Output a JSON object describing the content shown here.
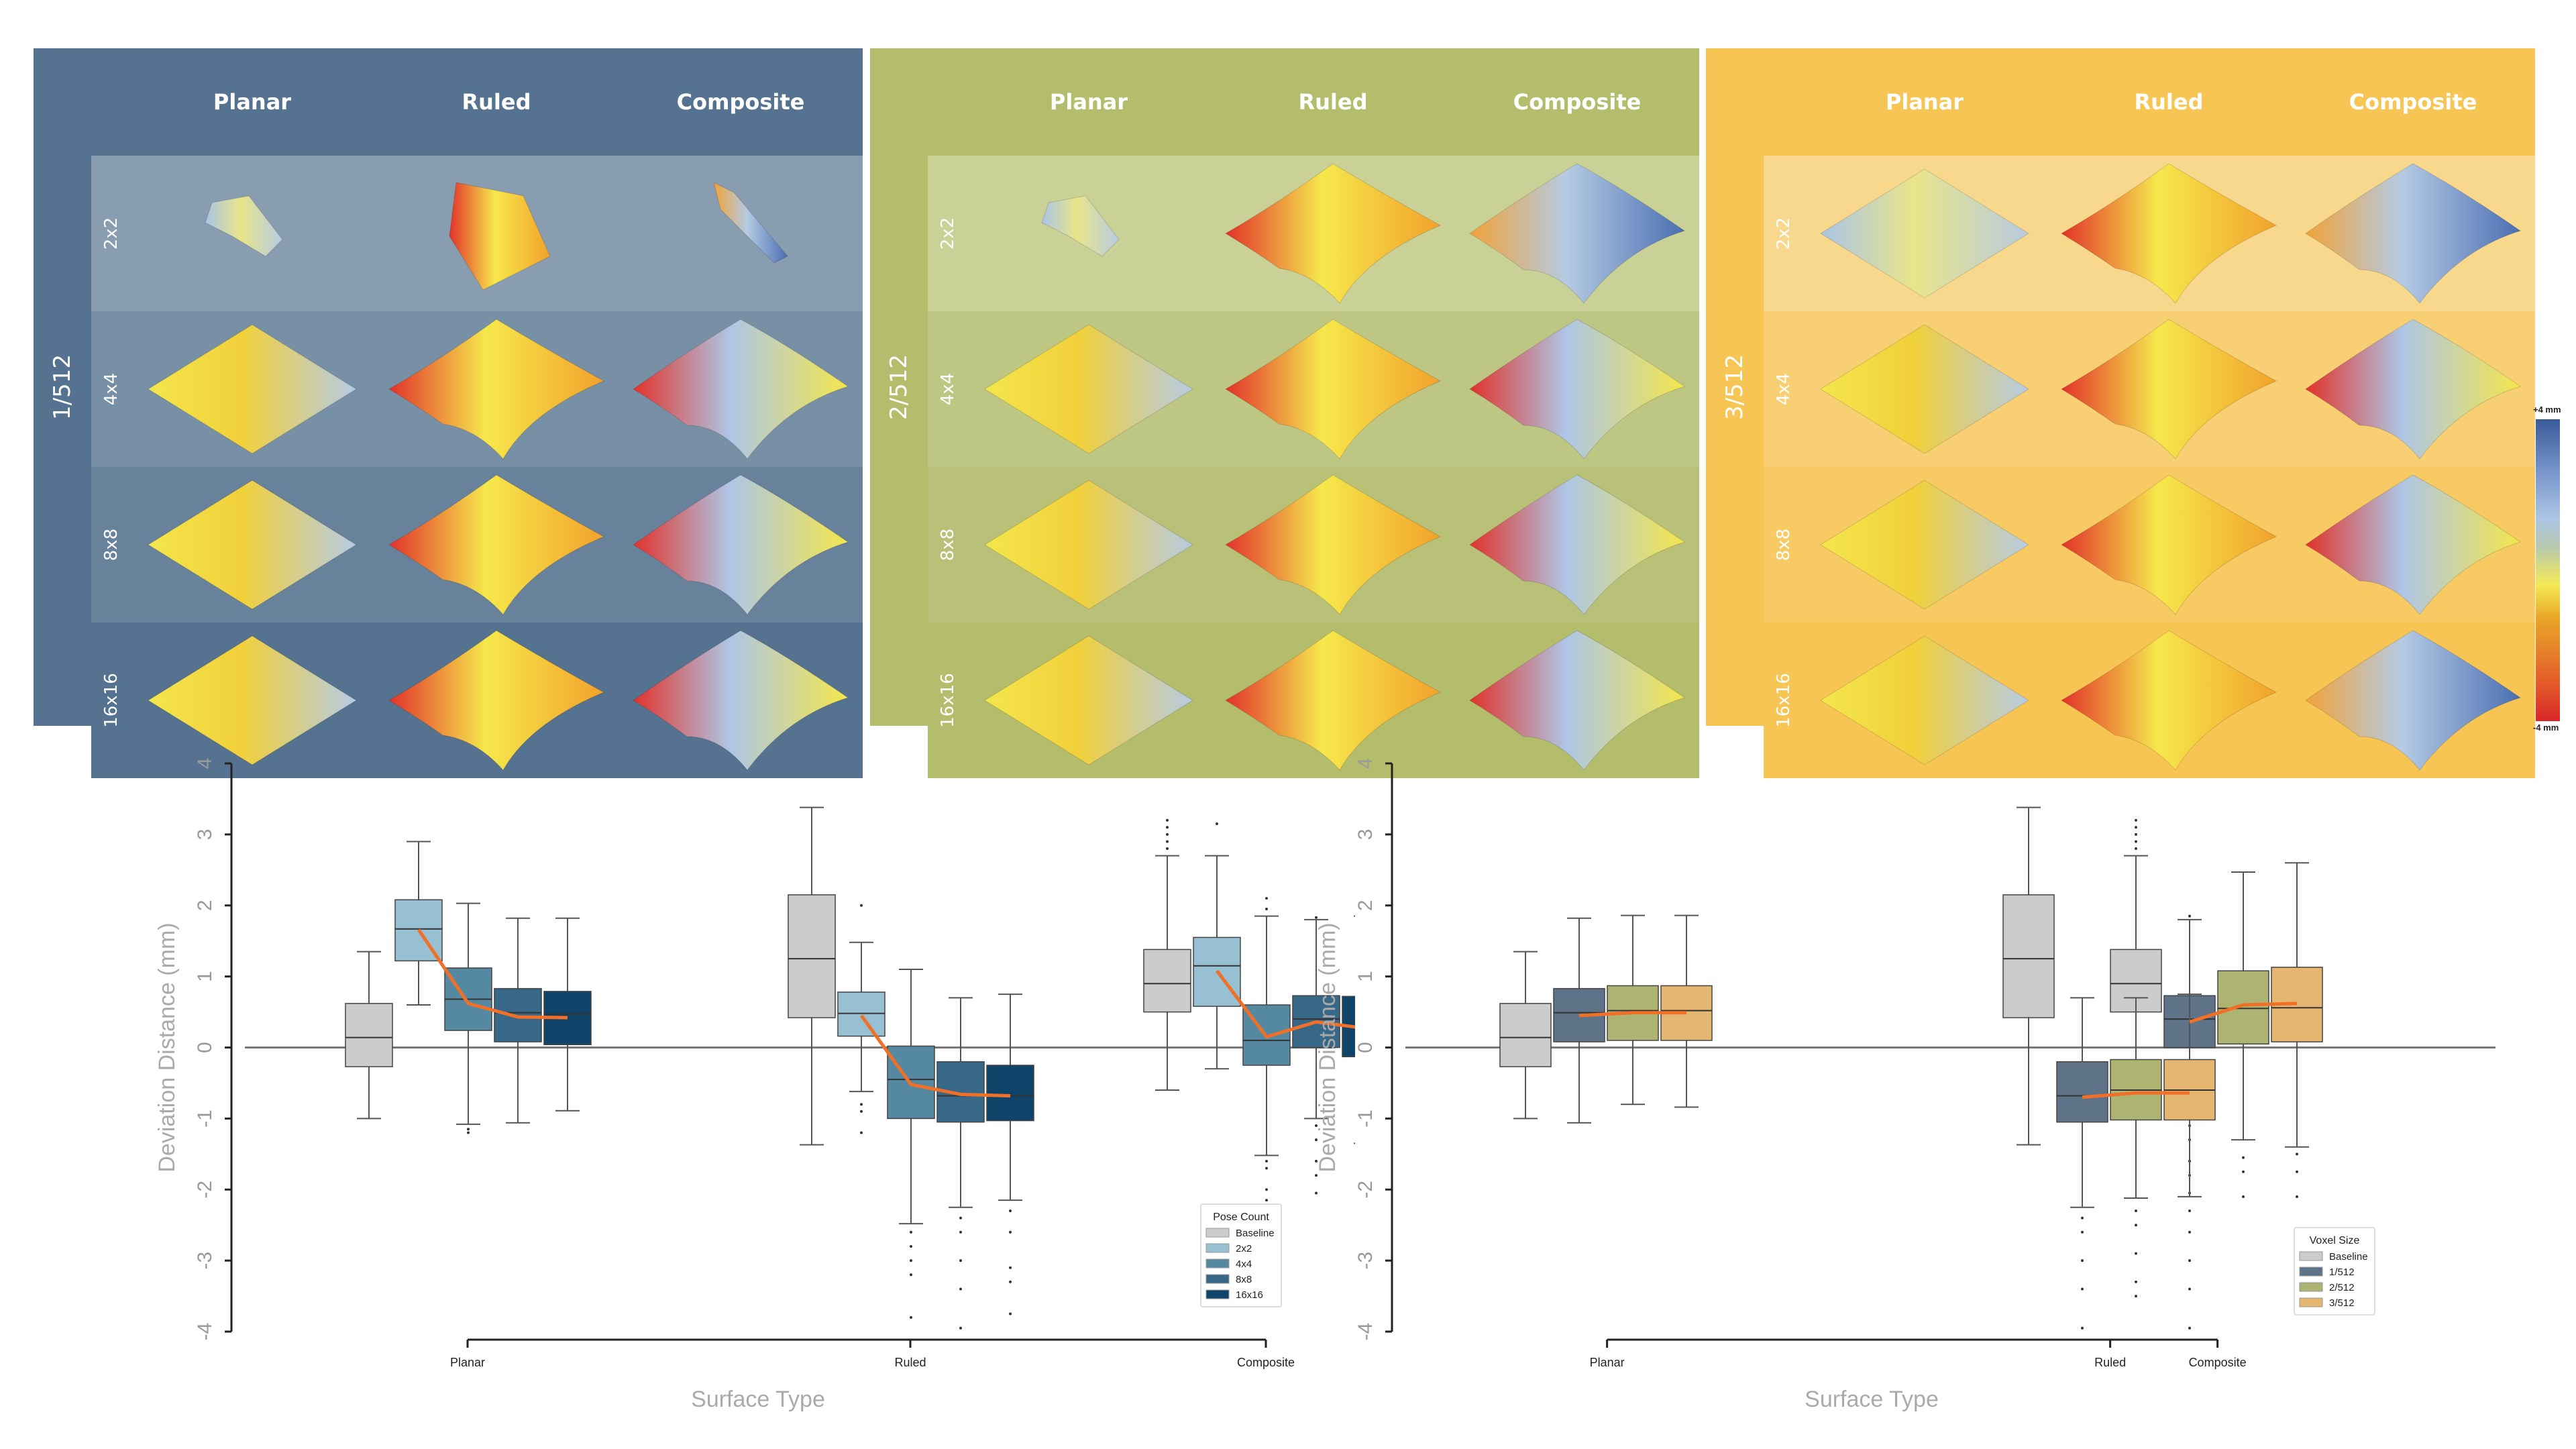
{
  "figure": {
    "colorbar": {
      "max_label": "+4 mm",
      "min_label": "-4 mm",
      "range_mm": [
        -4,
        4
      ],
      "colors": [
        "#3a5a98",
        "#adc6e6",
        "#f5ea55",
        "#e6842a",
        "#d8262a"
      ]
    },
    "panels": [
      {
        "voxel_size": "1/512",
        "color": "#557290",
        "row_tints": [
          "#889db0",
          "#7890a6",
          "#68829c",
          "#557290"
        ],
        "columns": [
          "Planar",
          "Ruled",
          "Composite"
        ],
        "rows": [
          "2x2",
          "4x4",
          "8x8",
          "16x16"
        ]
      },
      {
        "voxel_size": "2/512",
        "color": "#b4bd6c",
        "row_tints": [
          "#c9d196",
          "#bec684",
          "#b9c178",
          "#b4bd6c"
        ],
        "columns": [
          "Planar",
          "Ruled",
          "Composite"
        ],
        "rows": [
          "2x2",
          "4x4",
          "8x8",
          "16x16"
        ]
      },
      {
        "voxel_size": "3/512",
        "color": "#f7c553",
        "row_tints": [
          "#f8d88c",
          "#f8cf72",
          "#f7ca63",
          "#f7c553"
        ],
        "columns": [
          "Planar",
          "Ruled",
          "Composite"
        ],
        "rows": [
          "2x2",
          "4x4",
          "8x8",
          "16x16"
        ]
      }
    ]
  },
  "chart_data": [
    {
      "type": "box",
      "title": "",
      "xlabel": "Surface Type",
      "ylabel": "Deviation Distance (mm)",
      "ylim": [
        -4,
        4
      ],
      "yticks": [
        -4,
        -3,
        -2,
        -1,
        0,
        1,
        2,
        3,
        4
      ],
      "categories": [
        "Planar",
        "Ruled",
        "Composite"
      ],
      "legend": {
        "title": "Pose Count",
        "position": "bottom-right"
      },
      "trend_line_color": "#f07028",
      "reference_line": 0,
      "series": [
        {
          "name": "Baseline",
          "color": "#cccccc",
          "boxes": [
            {
              "q1": -0.27,
              "median": 0.14,
              "q3": 0.62,
              "wlo": -1.0,
              "whi": 1.35,
              "mean": 0.16,
              "outliers": []
            },
            {
              "q1": 0.42,
              "median": 1.25,
              "q3": 2.15,
              "wlo": -1.37,
              "whi": 3.38,
              "mean": 1.28,
              "outliers": []
            },
            {
              "q1": 0.5,
              "median": 0.9,
              "q3": 1.38,
              "wlo": -0.6,
              "whi": 2.7,
              "mean": 1.05,
              "outliers": [
                2.8,
                2.9,
                3.0,
                3.1,
                3.2
              ]
            }
          ]
        },
        {
          "name": "2x2",
          "color": "#97c0d2",
          "boxes": [
            {
              "q1": 1.22,
              "median": 1.67,
              "q3": 2.08,
              "wlo": 0.6,
              "whi": 2.9,
              "mean": 1.66,
              "outliers": []
            },
            {
              "q1": 0.16,
              "median": 0.48,
              "q3": 0.78,
              "wlo": -0.62,
              "whi": 1.48,
              "mean": 0.45,
              "outliers": [
                2.0,
                -0.8,
                -0.9,
                -1.2
              ]
            },
            {
              "q1": 0.58,
              "median": 1.15,
              "q3": 1.55,
              "wlo": -0.3,
              "whi": 2.7,
              "mean": 1.08,
              "outliers": [
                3.15
              ]
            }
          ]
        },
        {
          "name": "4x4",
          "color": "#5589a2",
          "boxes": [
            {
              "q1": 0.24,
              "median": 0.68,
              "q3": 1.12,
              "wlo": -1.08,
              "whi": 2.03,
              "mean": 0.62,
              "outliers": [
                -1.15,
                -1.2
              ]
            },
            {
              "q1": -1.0,
              "median": -0.45,
              "q3": 0.02,
              "wlo": -2.48,
              "whi": 1.1,
              "mean": -0.52,
              "outliers": [
                -2.6,
                -2.8,
                -3.0,
                -3.2,
                -3.8
              ]
            },
            {
              "q1": -0.25,
              "median": 0.1,
              "q3": 0.6,
              "wlo": -1.52,
              "whi": 1.85,
              "mean": 0.15,
              "outliers": [
                2.1,
                1.95,
                -1.6,
                -1.7,
                -2.0,
                -2.15
              ]
            }
          ]
        },
        {
          "name": "8x8",
          "color": "#386887",
          "boxes": [
            {
              "q1": 0.08,
              "median": 0.49,
              "q3": 0.83,
              "wlo": -1.06,
              "whi": 1.82,
              "mean": 0.43,
              "outliers": []
            },
            {
              "q1": -1.05,
              "median": -0.68,
              "q3": -0.2,
              "wlo": -2.25,
              "whi": 0.7,
              "mean": -0.66,
              "outliers": [
                -2.4,
                -2.6,
                -3.0,
                -3.4,
                -3.95
              ]
            },
            {
              "q1": 0.0,
              "median": 0.4,
              "q3": 0.73,
              "wlo": -1.0,
              "whi": 1.8,
              "mean": 0.36,
              "outliers": [
                1.83,
                -1.1,
                -1.3,
                -1.6,
                -1.8,
                -2.05
              ]
            }
          ]
        },
        {
          "name": "16x16",
          "color": "#10436a",
          "boxes": [
            {
              "q1": 0.04,
              "median": 0.47,
              "q3": 0.79,
              "wlo": -0.89,
              "whi": 1.82,
              "mean": 0.42,
              "outliers": []
            },
            {
              "q1": -1.03,
              "median": -0.68,
              "q3": -0.25,
              "wlo": -2.15,
              "whi": 0.75,
              "mean": -0.68,
              "outliers": [
                -2.3,
                -2.6,
                -3.1,
                -3.3,
                -3.75
              ]
            },
            {
              "q1": -0.13,
              "median": 0.3,
              "q3": 0.72,
              "wlo": -1.35,
              "whi": 1.85,
              "mean": 0.27,
              "outliers": [
                -1.6,
                -1.75
              ]
            }
          ]
        }
      ]
    },
    {
      "type": "box",
      "title": "",
      "xlabel": "Surface Type",
      "ylabel": "Deviation Distance (mm)",
      "ylim": [
        -4,
        4
      ],
      "yticks": [
        -4,
        -3,
        -2,
        -1,
        0,
        1,
        2,
        3,
        4
      ],
      "categories": [
        "Planar",
        "Ruled",
        "Composite"
      ],
      "legend": {
        "title": "Voxel Size",
        "position": "bottom-right"
      },
      "trend_line_color": "#f07028",
      "reference_line": 0,
      "series": [
        {
          "name": "Baseline",
          "color": "#cccccc",
          "boxes": [
            {
              "q1": -0.27,
              "median": 0.14,
              "q3": 0.62,
              "wlo": -1.0,
              "whi": 1.35,
              "mean": 0.16,
              "outliers": []
            },
            {
              "q1": 0.42,
              "median": 1.25,
              "q3": 2.15,
              "wlo": -1.37,
              "whi": 3.38,
              "mean": 1.28,
              "outliers": []
            },
            {
              "q1": 0.5,
              "median": 0.9,
              "q3": 1.38,
              "wlo": -0.6,
              "whi": 2.7,
              "mean": 1.05,
              "outliers": [
                2.8,
                2.9,
                3.0,
                3.1,
                3.2
              ]
            }
          ]
        },
        {
          "name": "1/512",
          "color": "#5e7388",
          "boxes": [
            {
              "q1": 0.08,
              "median": 0.49,
              "q3": 0.83,
              "wlo": -1.06,
              "whi": 1.82,
              "mean": 0.45,
              "outliers": []
            },
            {
              "q1": -1.05,
              "median": -0.68,
              "q3": -0.2,
              "wlo": -2.25,
              "whi": 0.7,
              "mean": -0.7,
              "outliers": [
                -2.4,
                -2.6,
                -3.0,
                -3.4,
                -3.95
              ]
            },
            {
              "q1": 0.0,
              "median": 0.4,
              "q3": 0.73,
              "wlo": -1.0,
              "whi": 1.8,
              "mean": 0.36,
              "outliers": [
                1.85,
                -1.1,
                -1.3,
                -1.6,
                -1.8,
                -2.05
              ]
            }
          ]
        },
        {
          "name": "2/512",
          "color": "#adb472",
          "boxes": [
            {
              "q1": 0.1,
              "median": 0.52,
              "q3": 0.87,
              "wlo": -0.8,
              "whi": 1.86,
              "mean": 0.49,
              "outliers": []
            },
            {
              "q1": -1.02,
              "median": -0.6,
              "q3": -0.17,
              "wlo": -2.12,
              "whi": 0.7,
              "mean": -0.64,
              "outliers": [
                -2.3,
                -2.5,
                -2.9,
                -3.3,
                -3.5
              ]
            },
            {
              "q1": 0.05,
              "median": 0.55,
              "q3": 1.08,
              "wlo": -1.3,
              "whi": 2.47,
              "mean": 0.6,
              "outliers": [
                -1.55,
                -1.75,
                -2.1
              ]
            }
          ]
        },
        {
          "name": "3/512",
          "color": "#e5b572",
          "boxes": [
            {
              "q1": 0.1,
              "median": 0.52,
              "q3": 0.87,
              "wlo": -0.84,
              "whi": 1.86,
              "mean": 0.49,
              "outliers": []
            },
            {
              "q1": -1.02,
              "median": -0.6,
              "q3": -0.17,
              "wlo": -2.1,
              "whi": 0.75,
              "mean": -0.64,
              "outliers": [
                -2.3,
                -2.6,
                -3.0,
                -3.4,
                -3.95
              ]
            },
            {
              "q1": 0.08,
              "median": 0.56,
              "q3": 1.13,
              "wlo": -1.4,
              "whi": 2.6,
              "mean": 0.62,
              "outliers": [
                -1.5,
                -1.75,
                -2.1
              ]
            }
          ]
        }
      ]
    }
  ]
}
